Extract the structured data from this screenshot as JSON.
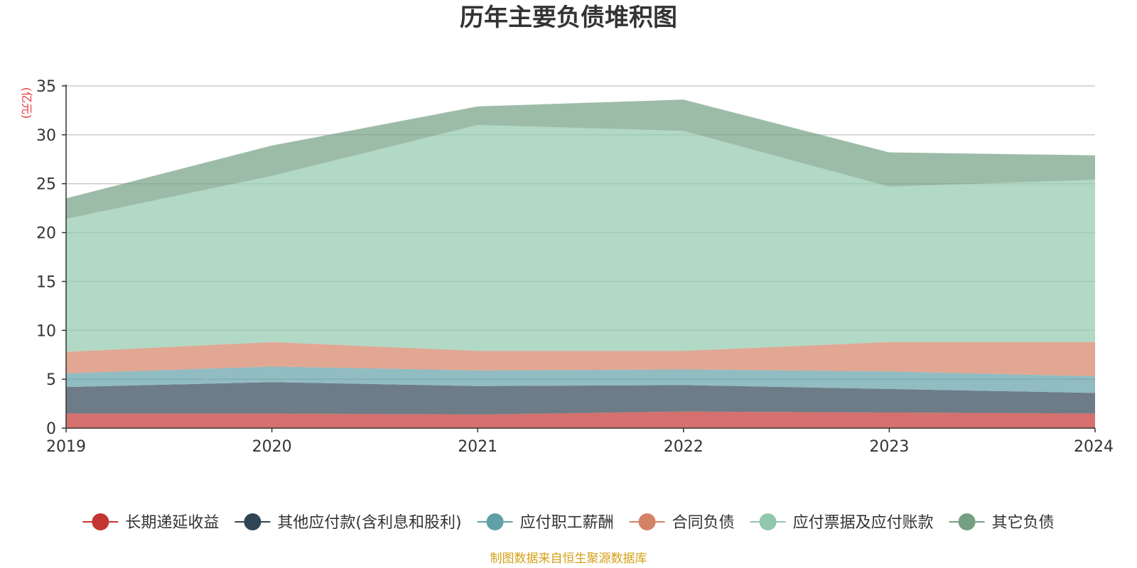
{
  "chart_data": {
    "type": "area",
    "stacked": true,
    "title": "历年主要负债堆积图",
    "ylabel": "(亿元)",
    "xlabel": "",
    "categories": [
      "2019",
      "2020",
      "2021",
      "2022",
      "2023",
      "2024"
    ],
    "ylim": [
      0,
      35
    ],
    "yticks": [
      0,
      5,
      10,
      15,
      20,
      25,
      30,
      35
    ],
    "grid": true,
    "legend_position": "bottom",
    "series": [
      {
        "name": "长期递延收益",
        "values": [
          1.5,
          1.5,
          1.4,
          1.7,
          1.6,
          1.5
        ],
        "color": "#c23531"
      },
      {
        "name": "其他应付款(含利息和股利)",
        "values": [
          2.7,
          3.2,
          2.9,
          2.7,
          2.4,
          2.1
        ],
        "color": "#2f4554"
      },
      {
        "name": "应付职工薪酬",
        "values": [
          1.4,
          1.6,
          1.6,
          1.6,
          1.8,
          1.7
        ],
        "color": "#61a0a8"
      },
      {
        "name": "合同负债",
        "values": [
          2.2,
          2.5,
          2.0,
          1.9,
          3.0,
          3.5
        ],
        "color": "#d48265"
      },
      {
        "name": "应付票据及应付账款",
        "values": [
          13.6,
          17.0,
          23.1,
          22.5,
          15.9,
          16.6
        ],
        "color": "#91c7ae"
      },
      {
        "name": "其它负债",
        "values": [
          2.1,
          3.1,
          1.9,
          3.2,
          3.5,
          2.5
        ],
        "color": "#749f83"
      }
    ],
    "source": "制图数据来自恒生聚源数据库",
    "colors": {
      "title": "#333333",
      "axis": "#333333",
      "grid": "#cccccc",
      "unit": "#e4393c",
      "source": "#d4a017"
    }
  }
}
